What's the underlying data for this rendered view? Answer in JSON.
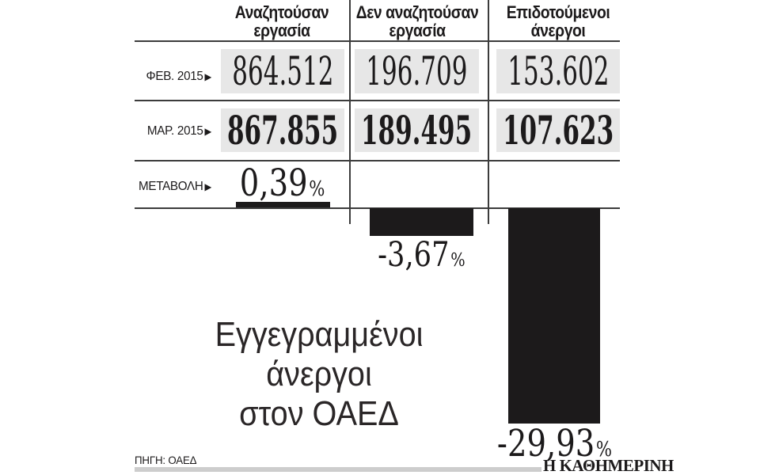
{
  "colors": {
    "ink": "#1c1a1b",
    "value_box": "#e7e7e7",
    "rule": "#3c3c3c",
    "footer_bar": "#cdcdcd"
  },
  "table": {
    "headers": [
      "Αναζητούσαν εργασία",
      "Δεν αναζητούσαν εργασία",
      "Επιδοτούμενοι άνεργοι"
    ],
    "rows": [
      {
        "label": "ΦΕΒ. 2015",
        "values": [
          "864.512",
          "196.709",
          "153.602"
        ]
      },
      {
        "label": "ΜΑΡ. 2015",
        "values": [
          "867.855",
          "189.495",
          "107.623"
        ]
      }
    ],
    "change": {
      "label": "ΜΕΤΑΒΟΛΗ",
      "values": [
        "0,39",
        "-3,67",
        "-29,93"
      ],
      "unit": "%"
    }
  },
  "icons": {
    "arrow_right": "▶"
  },
  "title": {
    "lines": [
      "Εγγεγραμμένοι",
      "άνεργοι",
      "στον ΟΑΕΔ"
    ]
  },
  "footer": {
    "source": "ΠΗΓΗ: ΟΑΕΔ",
    "logo": "Η ΚΑΘΗΜΕΡΙΝΗ"
  },
  "chart_data": {
    "type": "bar",
    "title": "Εγγεγραμμένοι άνεργοι στον ΟΑΕΔ",
    "categories": [
      "Αναζητούσαν εργασία",
      "Δεν αναζητούσαν εργασία",
      "Επιδοτούμενοι άνεργοι"
    ],
    "series": [
      {
        "name": "ΦΕΒ. 2015",
        "values": [
          864512,
          196709,
          153602
        ]
      },
      {
        "name": "ΜΑΡ. 2015",
        "values": [
          867855,
          189495,
          107623
        ]
      },
      {
        "name": "ΜΕΤΑΒΟΛΗ %",
        "values": [
          0.39,
          -3.67,
          -29.93
        ]
      }
    ],
    "bars_rendered_for_series": "ΜΕΤΑΒΟΛΗ %",
    "ylim": [
      -30,
      1
    ],
    "legend_position": "none",
    "grid": false,
    "source": "ΠΗΓΗ: ΟΑΕΔ"
  }
}
